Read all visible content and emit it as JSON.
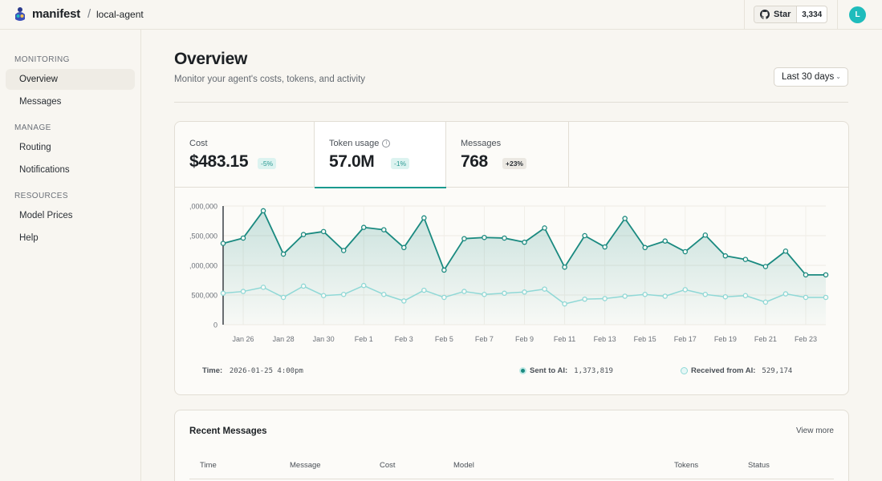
{
  "topbar": {
    "brand": "manifest",
    "separator": "/",
    "project": "local-agent",
    "star_label": "Star",
    "star_count": "3,334",
    "avatar_initial": "L"
  },
  "sidebar": {
    "sections": [
      {
        "label": "MONITORING",
        "items": [
          {
            "label": "Overview",
            "active": true
          },
          {
            "label": "Messages"
          }
        ]
      },
      {
        "label": "MANAGE",
        "items": [
          {
            "label": "Routing"
          },
          {
            "label": "Notifications"
          }
        ]
      },
      {
        "label": "RESOURCES",
        "items": [
          {
            "label": "Model Prices"
          },
          {
            "label": "Help"
          }
        ]
      }
    ]
  },
  "header": {
    "title": "Overview",
    "subtitle": "Monitor your agent's costs, tokens, and activity",
    "range": "Last 30 days"
  },
  "metrics": [
    {
      "label": "Cost",
      "value": "$483.15",
      "change": "-5%"
    },
    {
      "label": "Token usage",
      "value": "57.0M",
      "change": "-1%"
    },
    {
      "label": "Messages",
      "value": "768",
      "change": "+23%"
    }
  ],
  "legend": {
    "time_label": "Time:",
    "time_value": "2026-01-25 4:00pm",
    "sent_label": "Sent to AI:",
    "sent_value": "1,373,819",
    "recv_label": "Received from AI:",
    "recv_value": "529,174"
  },
  "colors": {
    "accent": "#1a9a8f",
    "sent": "#1a8a80",
    "received": "#8fd8d6"
  },
  "chart_data": {
    "type": "area",
    "y_tick_labels": [
      ",000,000",
      ",500,000",
      ",000,000",
      "500,000",
      "0"
    ],
    "y_tick_values": [
      2000000,
      1500000,
      1000000,
      500000,
      0
    ],
    "ylim": [
      0,
      2000000
    ],
    "x_tick_labels": [
      "Jan 26",
      "Jan 28",
      "Jan 30",
      "Feb 1",
      "Feb 3",
      "Feb 5",
      "Feb 7",
      "Feb 9",
      "Feb 11",
      "Feb 13",
      "Feb 15",
      "Feb 17",
      "Feb 19",
      "Feb 21",
      "Feb 23"
    ],
    "x": [
      "Jan 25",
      "Jan 26",
      "Jan 27",
      "Jan 28",
      "Jan 29",
      "Jan 30",
      "Jan 31",
      "Feb 1",
      "Feb 2",
      "Feb 3",
      "Feb 4",
      "Feb 5",
      "Feb 6",
      "Feb 7",
      "Feb 8",
      "Feb 9",
      "Feb 10",
      "Feb 11",
      "Feb 12",
      "Feb 13",
      "Feb 14",
      "Feb 15",
      "Feb 16",
      "Feb 17",
      "Feb 18",
      "Feb 19",
      "Feb 20",
      "Feb 21",
      "Feb 22",
      "Feb 23",
      "Feb 24"
    ],
    "series": [
      {
        "name": "Sent to AI",
        "values": [
          1370000,
          1460000,
          1920000,
          1190000,
          1520000,
          1570000,
          1250000,
          1640000,
          1600000,
          1300000,
          1800000,
          920000,
          1450000,
          1470000,
          1460000,
          1390000,
          1630000,
          970000,
          1500000,
          1310000,
          1790000,
          1300000,
          1410000,
          1230000,
          1510000,
          1160000,
          1100000,
          980000,
          1240000,
          840000,
          840000
        ],
        "color": "#1a8a80"
      },
      {
        "name": "Received from AI",
        "values": [
          530000,
          560000,
          630000,
          460000,
          650000,
          490000,
          510000,
          660000,
          510000,
          400000,
          580000,
          460000,
          560000,
          510000,
          530000,
          550000,
          600000,
          350000,
          430000,
          440000,
          480000,
          510000,
          480000,
          590000,
          510000,
          470000,
          490000,
          380000,
          520000,
          460000,
          460000
        ],
        "color": "#8fd8d6"
      }
    ],
    "grid": true
  },
  "recent": {
    "title": "Recent Messages",
    "view_more": "View more",
    "columns": [
      "Time",
      "Message",
      "Cost",
      "Model",
      "Tokens",
      "Status"
    ]
  }
}
